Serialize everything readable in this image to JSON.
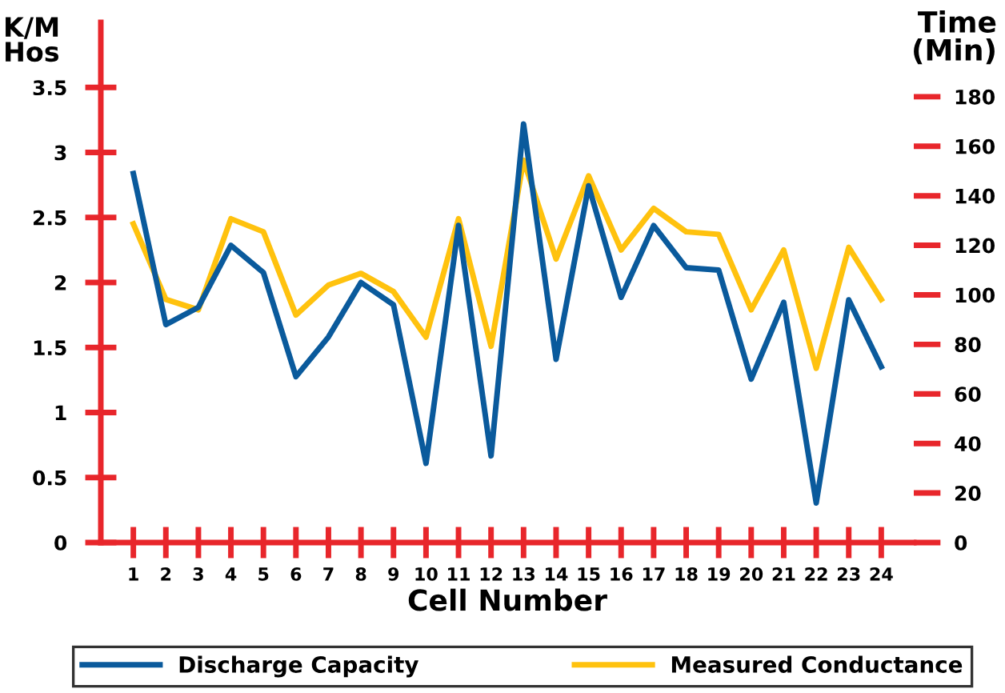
{
  "chart_data": {
    "type": "line",
    "xlabel": "Cell Number",
    "ylabel": "K/M\nHos",
    "y2label": "Time\n(Min)",
    "categories": [
      "1",
      "2",
      "3",
      "4",
      "5",
      "6",
      "7",
      "8",
      "9",
      "10",
      "11",
      "12",
      "13",
      "14",
      "15",
      "16",
      "17",
      "18",
      "19",
      "20",
      "21",
      "22",
      "23",
      "24"
    ],
    "series": [
      {
        "name": "Discharge Capacity",
        "color": "#0a5a9c",
        "axis": "y2",
        "values": [
          149,
          88,
          95,
          120,
          109,
          67,
          83,
          105,
          96,
          32,
          128,
          35,
          169,
          74,
          144,
          99,
          128,
          111,
          110,
          66,
          97,
          16,
          98,
          71
        ]
      },
      {
        "name": "Measured Conductance",
        "color": "#ffc20e",
        "values": [
          2.45,
          1.87,
          1.79,
          2.49,
          2.39,
          1.75,
          1.98,
          2.07,
          1.93,
          1.58,
          2.49,
          1.51,
          2.94,
          2.18,
          2.82,
          2.25,
          2.57,
          2.39,
          2.37,
          1.79,
          2.25,
          1.34,
          2.27,
          1.87
        ]
      }
    ],
    "ylim": [
      0,
      4
    ],
    "yticks": [
      0,
      0.5,
      1,
      1.5,
      2,
      2.5,
      3,
      3.5
    ],
    "y2lim": [
      0,
      210
    ],
    "y2ticks": [
      0,
      20,
      40,
      60,
      80,
      100,
      120,
      140,
      160,
      180
    ],
    "grid": false,
    "legend": "bottom",
    "marker": "none",
    "line_style": "solid"
  }
}
